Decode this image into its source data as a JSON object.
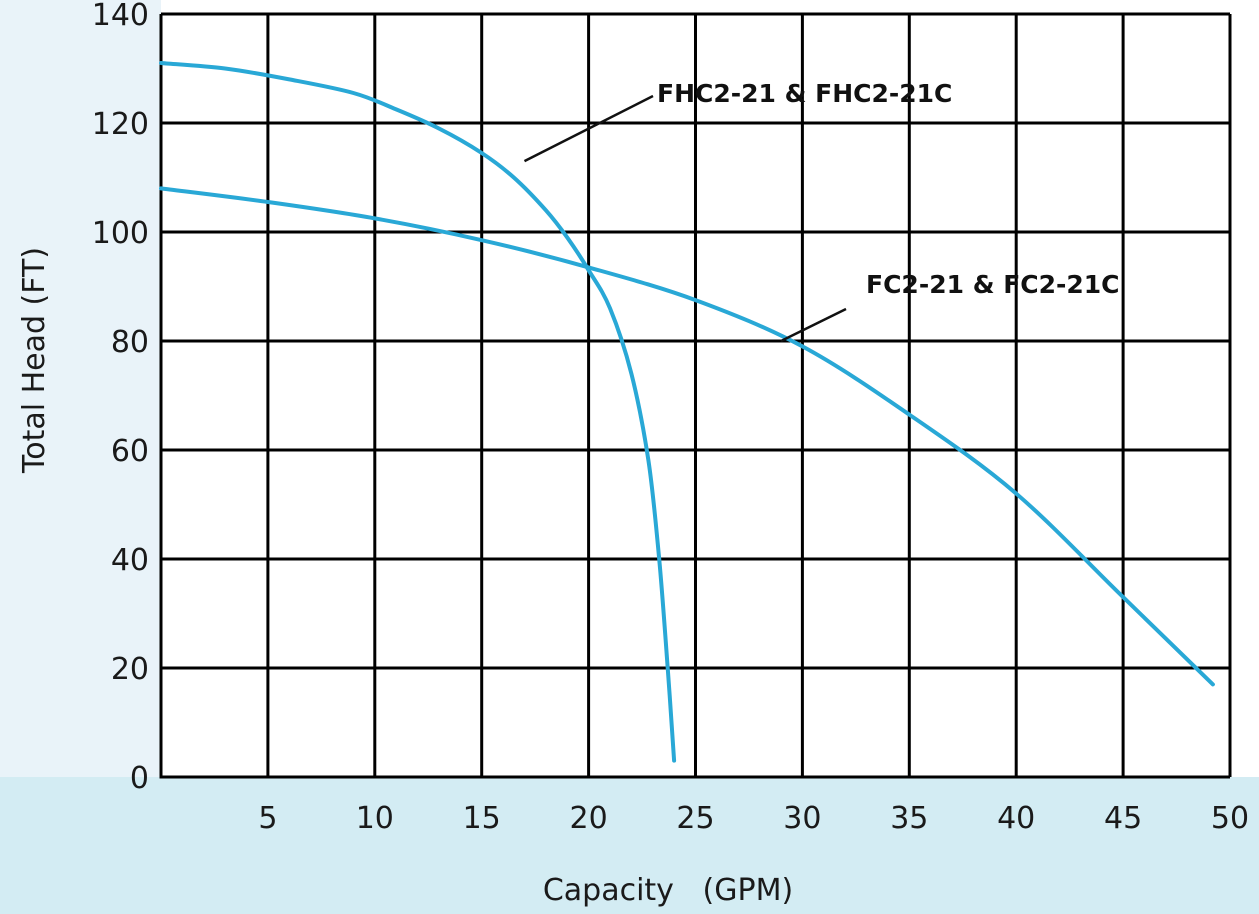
{
  "chart_data": {
    "type": "line",
    "title": "",
    "xlabel": "Capacity   (GPM)",
    "ylabel": "Total Head (FT)",
    "xlim": [
      0,
      50
    ],
    "ylim": [
      0,
      140
    ],
    "x_ticks": [
      5,
      10,
      15,
      20,
      25,
      30,
      35,
      40,
      45,
      50
    ],
    "y_ticks": [
      0,
      20,
      40,
      60,
      80,
      100,
      120,
      140
    ],
    "grid": true,
    "legend": "none",
    "colors": {
      "curve": "#29a8d6",
      "grid": "#000000",
      "bottom_band": "#d3ecf3",
      "left_band": "#e9f3f9"
    },
    "series": [
      {
        "name": "FHC2-21 & FHC2-21C",
        "x": [
          0,
          3,
          6,
          9,
          11,
          13,
          15,
          16.5,
          18,
          19,
          20,
          21,
          22,
          22.8,
          23.3,
          23.7,
          24
        ],
        "y": [
          131,
          130,
          128,
          125.5,
          122.5,
          119,
          114.5,
          110,
          104,
          99,
          93,
          86,
          74,
          58,
          40,
          20,
          3
        ]
      },
      {
        "name": "FC2-21 & FC2-21C",
        "x": [
          0,
          5,
          10,
          15,
          20,
          25,
          30,
          35,
          40,
          45,
          49.2
        ],
        "y": [
          108,
          105.5,
          102.5,
          98.5,
          93.5,
          87.5,
          79,
          66.5,
          52,
          33,
          17
        ]
      }
    ],
    "annotations": [
      {
        "text": "FHC2-21 & FHC2-21C",
        "series": 0,
        "point_x": 17,
        "point_y": 113
      },
      {
        "text": "FC2-21 & FC2-21C",
        "series": 1,
        "point_x": 29,
        "point_y": 80
      }
    ]
  }
}
